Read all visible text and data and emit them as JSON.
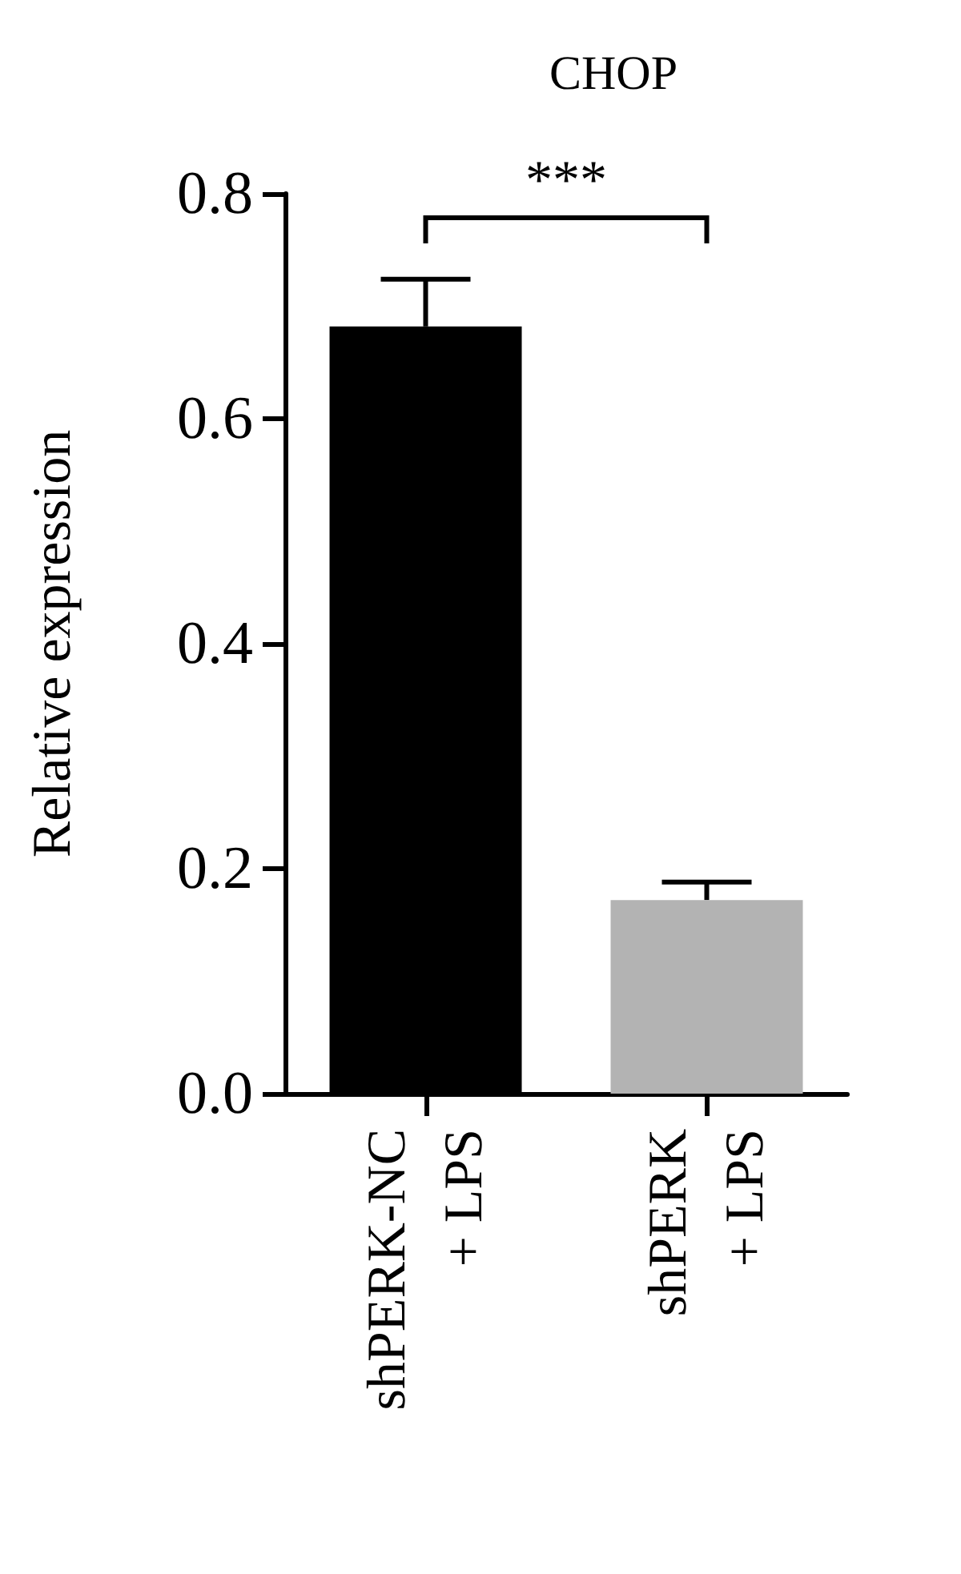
{
  "chart_data": {
    "type": "bar",
    "title": "CHOP",
    "ylabel": "Relative expression",
    "categories": [
      "shPERK-NC\n+ LPS",
      "shPERK\n+ LPS"
    ],
    "values": [
      0.682,
      0.172
    ],
    "colors": [
      "#000000",
      "#b3b3b3"
    ],
    "errors": [
      [
        0.682,
        0.724
      ],
      [
        0.172,
        0.188
      ]
    ],
    "ylim": [
      0,
      0.8
    ],
    "yticks": [
      {
        "value": 0,
        "label": "0.0"
      },
      {
        "value": 0.2,
        "label": "0.2"
      },
      {
        "value": 0.4,
        "label": "0.4"
      },
      {
        "value": 0.6,
        "label": "0.6"
      },
      {
        "value": 0.8,
        "label": "0.8"
      }
    ],
    "grid": false,
    "annotations": [
      "***"
    ]
  }
}
